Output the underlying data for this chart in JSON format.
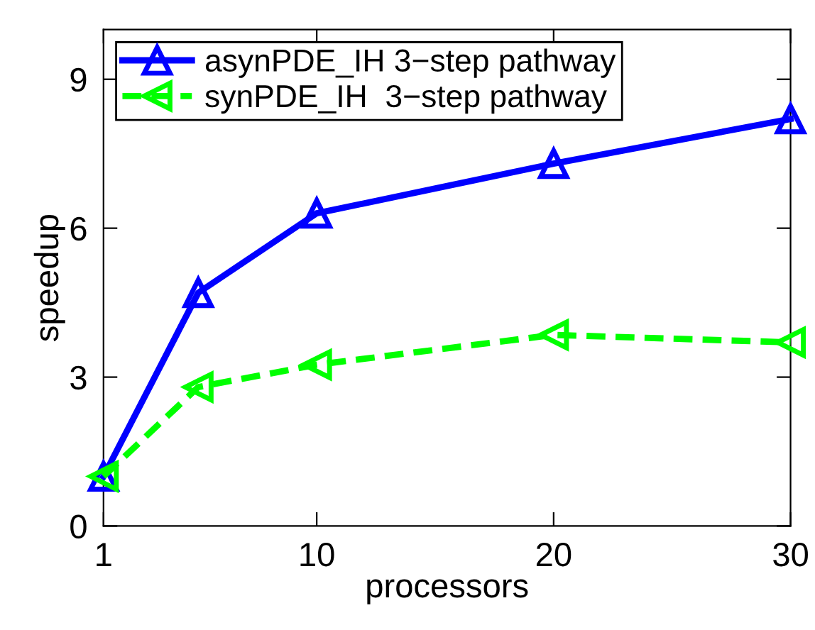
{
  "chart_data": {
    "type": "line",
    "xlabel": "processors",
    "ylabel": "speedup",
    "x": [
      1,
      5,
      10,
      20,
      30
    ],
    "xlim": [
      1,
      30
    ],
    "xticks": [
      1,
      10,
      20,
      30
    ],
    "ylim": [
      0,
      10
    ],
    "yticks": [
      0,
      3,
      6,
      9
    ],
    "grid": false,
    "legend": "top left",
    "series": [
      {
        "name": "asynPDE_IH 3−step pathway",
        "color": "#0000ff",
        "values": [
          1.0,
          4.7,
          6.3,
          7.3,
          8.2
        ],
        "marker": "triangle",
        "line_style": "solid"
      },
      {
        "name": "synPDE_IH  3−step pathway",
        "color": "#00ff00",
        "values": [
          1.0,
          2.8,
          3.25,
          3.85,
          3.7
        ],
        "marker": "triangle-left",
        "line_style": "dashed"
      }
    ]
  }
}
